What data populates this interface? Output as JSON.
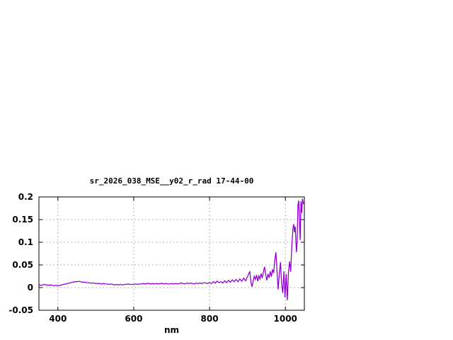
{
  "page": {
    "background": "#ffffff"
  },
  "chart_data": {
    "type": "line",
    "title": "sr_2026_038_MSE__y02_r_rad 17-44-00",
    "xlabel": "nm",
    "ylabel": "",
    "xlim": [
      350,
      1050
    ],
    "ylim": [
      -0.05,
      0.2
    ],
    "xticks": [
      400,
      600,
      800,
      1000
    ],
    "xtick_labels": [
      "400",
      "600",
      "800",
      "1000"
    ],
    "yticks": [
      -0.05,
      0,
      0.05,
      0.1,
      0.15,
      0.2
    ],
    "ytick_labels": [
      "-0.05",
      "0",
      "0.05",
      "0.1",
      "0.15",
      "0.2"
    ],
    "grid": true,
    "grid_style": "dashed",
    "legend_position": "none",
    "colors": {
      "line": "#9400d3",
      "grid": "#b0b0b0",
      "border": "#000000",
      "text": "#000000",
      "background": "#ffffff"
    },
    "series": [
      {
        "name": "sr_2026_038_MSE__y02_r_rad",
        "points": [
          [
            350,
            0.006
          ],
          [
            355,
            0.005
          ],
          [
            360,
            0.006
          ],
          [
            365,
            0.007
          ],
          [
            370,
            0.006
          ],
          [
            375,
            0.005
          ],
          [
            380,
            0.006
          ],
          [
            385,
            0.005
          ],
          [
            390,
            0.004
          ],
          [
            395,
            0.005
          ],
          [
            400,
            0.004
          ],
          [
            405,
            0.005
          ],
          [
            410,
            0.006
          ],
          [
            415,
            0.007
          ],
          [
            420,
            0.008
          ],
          [
            425,
            0.009
          ],
          [
            430,
            0.01
          ],
          [
            435,
            0.011
          ],
          [
            440,
            0.012
          ],
          [
            445,
            0.013
          ],
          [
            450,
            0.013
          ],
          [
            455,
            0.014
          ],
          [
            460,
            0.013
          ],
          [
            465,
            0.012
          ],
          [
            470,
            0.012
          ],
          [
            475,
            0.011
          ],
          [
            480,
            0.011
          ],
          [
            485,
            0.01
          ],
          [
            490,
            0.01
          ],
          [
            495,
            0.01
          ],
          [
            500,
            0.009
          ],
          [
            505,
            0.009
          ],
          [
            510,
            0.009
          ],
          [
            515,
            0.008
          ],
          [
            520,
            0.009
          ],
          [
            525,
            0.008
          ],
          [
            530,
            0.008
          ],
          [
            535,
            0.007
          ],
          [
            540,
            0.008
          ],
          [
            545,
            0.007
          ],
          [
            550,
            0.006
          ],
          [
            555,
            0.007
          ],
          [
            560,
            0.006
          ],
          [
            565,
            0.007
          ],
          [
            570,
            0.006
          ],
          [
            575,
            0.007
          ],
          [
            580,
            0.007
          ],
          [
            585,
            0.008
          ],
          [
            590,
            0.007
          ],
          [
            595,
            0.007
          ],
          [
            600,
            0.007
          ],
          [
            605,
            0.008
          ],
          [
            610,
            0.007
          ],
          [
            615,
            0.008
          ],
          [
            620,
            0.008
          ],
          [
            625,
            0.009
          ],
          [
            630,
            0.008
          ],
          [
            635,
            0.009
          ],
          [
            640,
            0.009
          ],
          [
            645,
            0.008
          ],
          [
            650,
            0.009
          ],
          [
            655,
            0.008
          ],
          [
            660,
            0.009
          ],
          [
            665,
            0.008
          ],
          [
            670,
            0.009
          ],
          [
            675,
            0.009
          ],
          [
            680,
            0.008
          ],
          [
            685,
            0.009
          ],
          [
            690,
            0.008
          ],
          [
            695,
            0.008
          ],
          [
            700,
            0.009
          ],
          [
            705,
            0.008
          ],
          [
            710,
            0.009
          ],
          [
            715,
            0.008
          ],
          [
            720,
            0.009
          ],
          [
            725,
            0.01
          ],
          [
            730,
            0.009
          ],
          [
            735,
            0.008
          ],
          [
            740,
            0.01
          ],
          [
            745,
            0.009
          ],
          [
            750,
            0.01
          ],
          [
            755,
            0.009
          ],
          [
            760,
            0.008
          ],
          [
            765,
            0.01
          ],
          [
            770,
            0.009
          ],
          [
            775,
            0.01
          ],
          [
            780,
            0.009
          ],
          [
            785,
            0.011
          ],
          [
            790,
            0.01
          ],
          [
            795,
            0.009
          ],
          [
            800,
            0.011
          ],
          [
            805,
            0.009
          ],
          [
            810,
            0.013
          ],
          [
            815,
            0.01
          ],
          [
            820,
            0.014
          ],
          [
            825,
            0.011
          ],
          [
            830,
            0.013
          ],
          [
            835,
            0.01
          ],
          [
            840,
            0.015
          ],
          [
            845,
            0.011
          ],
          [
            850,
            0.016
          ],
          [
            855,
            0.012
          ],
          [
            860,
            0.017
          ],
          [
            865,
            0.013
          ],
          [
            870,
            0.018
          ],
          [
            875,
            0.013
          ],
          [
            880,
            0.019
          ],
          [
            885,
            0.014
          ],
          [
            890,
            0.021
          ],
          [
            895,
            0.015
          ],
          [
            900,
            0.024
          ],
          [
            903,
            0.03
          ],
          [
            906,
            0.036
          ],
          [
            909,
            0.012
          ],
          [
            912,
            0.002
          ],
          [
            915,
            0.015
          ],
          [
            918,
            0.025
          ],
          [
            921,
            0.018
          ],
          [
            924,
            0.028
          ],
          [
            927,
            0.014
          ],
          [
            930,
            0.026
          ],
          [
            933,
            0.019
          ],
          [
            936,
            0.031
          ],
          [
            939,
            0.021
          ],
          [
            942,
            0.034
          ],
          [
            945,
            0.046
          ],
          [
            948,
            0.028
          ],
          [
            951,
            0.016
          ],
          [
            954,
            0.03
          ],
          [
            957,
            0.022
          ],
          [
            960,
            0.036
          ],
          [
            963,
            0.024
          ],
          [
            966,
            0.04
          ],
          [
            969,
            0.032
          ],
          [
            972,
            0.06
          ],
          [
            975,
            0.078
          ],
          [
            978,
            0.035
          ],
          [
            981,
            -0.004
          ],
          [
            984,
            0.03
          ],
          [
            987,
            0.056
          ],
          [
            990,
            0.008
          ],
          [
            993,
            -0.012
          ],
          [
            996,
            0.036
          ],
          [
            999,
            -0.022
          ],
          [
            1002,
            0.03
          ],
          [
            1005,
            -0.028
          ],
          [
            1008,
            0.032
          ],
          [
            1011,
            0.058
          ],
          [
            1014,
            0.035
          ],
          [
            1017,
            0.092
          ],
          [
            1020,
            0.13
          ],
          [
            1022,
            0.14
          ],
          [
            1024,
            0.122
          ],
          [
            1026,
            0.135
          ],
          [
            1029,
            0.078
          ],
          [
            1031,
            0.1
          ],
          [
            1033,
            0.182
          ],
          [
            1035,
            0.192
          ],
          [
            1037,
            0.15
          ],
          [
            1039,
            0.105
          ],
          [
            1041,
            0.19
          ],
          [
            1043,
            0.165
          ],
          [
            1045,
            0.196
          ],
          [
            1048,
            0.184
          ]
        ]
      }
    ]
  }
}
